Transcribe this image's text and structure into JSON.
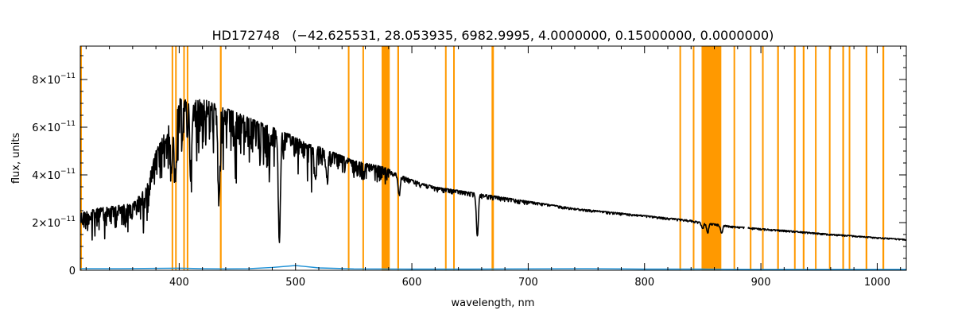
{
  "chart_data": {
    "type": "line",
    "title": "HD172748   (−42.625531, 28.053935, 6982.9995, 4.0000000, 0.15000000, 0.0000000)",
    "xlabel": "wavelength, nm",
    "ylabel": "flux, units",
    "xlim": [
      315,
      1025
    ],
    "ylim": [
      0,
      9.4e-11
    ],
    "grid": false,
    "x_ticks": [
      {
        "value": 400,
        "label": "400"
      },
      {
        "value": 500,
        "label": "500"
      },
      {
        "value": 600,
        "label": "600"
      },
      {
        "value": 700,
        "label": "700"
      },
      {
        "value": 800,
        "label": "800"
      },
      {
        "value": 900,
        "label": "900"
      },
      {
        "value": 1000,
        "label": "1000"
      }
    ],
    "y_ticks": [
      {
        "value": 0,
        "mantissa": "0",
        "exponent": ""
      },
      {
        "value": 2e-11,
        "mantissa": "2×10",
        "exponent": "−11"
      },
      {
        "value": 4e-11,
        "mantissa": "4×10",
        "exponent": "−11"
      },
      {
        "value": 6e-11,
        "mantissa": "6×10",
        "exponent": "−11"
      },
      {
        "value": 8e-11,
        "mantissa": "8×10",
        "exponent": "−11"
      }
    ],
    "series": [
      {
        "color": "#000000",
        "style": "spectrum",
        "x": [
          315,
          330,
          345,
          360,
          372,
          380,
          390,
          400,
          410,
          420,
          430,
          440,
          450,
          460,
          470,
          480,
          490,
          500,
          510,
          520,
          530,
          540,
          550,
          560,
          570,
          578,
          585,
          600,
          620,
          640,
          660,
          680,
          700,
          720,
          740,
          760,
          780,
          800,
          820,
          840,
          850,
          860,
          875,
          900,
          920,
          940,
          960,
          980,
          1000,
          1010,
          1025
        ],
        "y": [
          2.4e-11,
          2.6e-11,
          2.7e-11,
          2.8e-11,
          3.5e-11,
          5e-11,
          6e-11,
          7.2e-11,
          7.1e-11,
          7.2e-11,
          7e-11,
          6.8e-11,
          6.6e-11,
          6.4e-11,
          6.2e-11,
          6e-11,
          5.8e-11,
          5.6e-11,
          5.3e-11,
          5.2e-11,
          5e-11,
          4.8e-11,
          4.6e-11,
          4.5e-11,
          4.4e-11,
          4.3e-11,
          4.1e-11,
          3.8e-11,
          3.5e-11,
          3.35e-11,
          3.2e-11,
          3.05e-11,
          2.9e-11,
          2.75e-11,
          2.6e-11,
          2.5e-11,
          2.4e-11,
          2.3e-11,
          2.2e-11,
          2.1e-11,
          2e-11,
          1.95e-11,
          1.85e-11,
          1.75e-11,
          1.68e-11,
          1.6e-11,
          1.52e-11,
          1.45e-11,
          1.38e-11,
          1.35e-11,
          1.3e-11
        ]
      },
      {
        "color": "#1a8fd6",
        "style": "line",
        "x": [
          315,
          350,
          380,
          400,
          420,
          440,
          460,
          480,
          500,
          520,
          550,
          600,
          650,
          700,
          750,
          800,
          850,
          900,
          950,
          1000,
          1025
        ],
        "y": [
          7e-13,
          7e-13,
          8e-13,
          9e-13,
          7e-13,
          6e-13,
          7e-13,
          1.2e-12,
          2e-12,
          1e-12,
          6e-13,
          5e-13,
          5e-13,
          6e-13,
          7e-13,
          5e-13,
          5e-13,
          4e-13,
          4e-13,
          4e-13,
          4e-13
        ]
      }
    ],
    "absorption_lines": [
      {
        "x": 393.4,
        "depth": 0.35
      },
      {
        "x": 396.8,
        "depth": 0.45
      },
      {
        "x": 410.2,
        "depth": 0.35
      },
      {
        "x": 434.0,
        "depth": 0.5
      },
      {
        "x": 486.1,
        "depth": 0.8
      },
      {
        "x": 517.0,
        "depth": 0.25
      },
      {
        "x": 527.0,
        "depth": 0.22
      },
      {
        "x": 589.0,
        "depth": 0.2
      },
      {
        "x": 656.3,
        "depth": 0.55
      },
      {
        "x": 849.8,
        "depth": 0.12
      },
      {
        "x": 854.2,
        "depth": 0.2
      },
      {
        "x": 866.2,
        "depth": 0.18
      }
    ],
    "gaps": [
      [
        886,
        889
      ]
    ],
    "masked_regions": {
      "color": "#ff9900",
      "ranges": [
        [
          315,
          316
        ],
        [
          393.5,
          394.5
        ],
        [
          396.5,
          397.5
        ],
        [
          403.5,
          404.5
        ],
        [
          406.5,
          407.5
        ],
        [
          435,
          436.5
        ],
        [
          545,
          546
        ],
        [
          557.5,
          558.5
        ],
        [
          574,
          581
        ],
        [
          587.5,
          589
        ],
        [
          628.5,
          629.5
        ],
        [
          635.5,
          636.5
        ],
        [
          668.5,
          670.5
        ],
        [
          830,
          831
        ],
        [
          841.5,
          842.5
        ],
        [
          849,
          866
        ],
        [
          876.5,
          877.5
        ],
        [
          890.5,
          891.5
        ],
        [
          901,
          902
        ],
        [
          914,
          915.5
        ],
        [
          928.5,
          929.5
        ],
        [
          936,
          937.5
        ],
        [
          946.5,
          947.5
        ],
        [
          958.5,
          959.5
        ],
        [
          970,
          971.5
        ],
        [
          975.5,
          976.5
        ],
        [
          990,
          991.5
        ],
        [
          1004.5,
          1006
        ]
      ]
    }
  }
}
